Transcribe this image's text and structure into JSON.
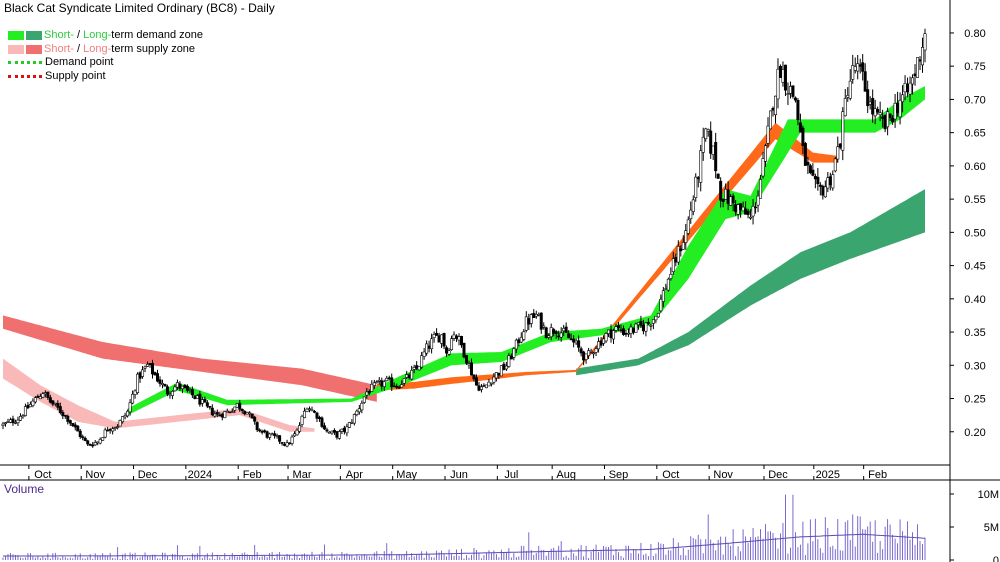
{
  "title": "Black Cat Syndicate Limited Ordinary (BC8) - Daily",
  "legend": {
    "demand_zone": {
      "short": "Short-",
      "sep": " / ",
      "long": "Long-",
      "rest": "term demand zone"
    },
    "supply_zone": {
      "short": "Short-",
      "sep": " / ",
      "long": "Long-",
      "rest": "term supply zone"
    },
    "demand_point": "Demand point",
    "supply_point": "Supply point"
  },
  "colors": {
    "short_demand": "#22ee22",
    "long_demand": "#3aa56f",
    "short_supply": "#f9b9b9",
    "long_supply": "#f07070",
    "short_supply_band": "#ff6a1a",
    "demand_point": "#22cc22",
    "supply_point": "#dd1111",
    "volume_bar": "#6a5acd",
    "volume_avg": "#5a4ab0",
    "volume_title": "#4b2a8a"
  },
  "volume_panel": {
    "title": "Volume"
  },
  "chart_data": {
    "type": "candlestick",
    "title": "Black Cat Syndicate Limited Ordinary (BC8) - Daily",
    "price_axis": {
      "ticks": [
        "0.80",
        "0.75",
        "0.70",
        "0.65",
        "0.60",
        "0.55",
        "0.50",
        "0.45",
        "0.40",
        "0.35",
        "0.30",
        "0.25",
        "0.20"
      ],
      "range": [
        0.15,
        0.83
      ]
    },
    "volume_axis": {
      "ticks": [
        "10M",
        "5M",
        "0"
      ],
      "range": [
        0,
        10000000
      ]
    },
    "x_ticks": [
      "Oct",
      "Nov",
      "Dec",
      "2024",
      "Feb",
      "Mar",
      "Apr",
      "May",
      "Jun",
      "Jul",
      "Aug",
      "Sep",
      "Oct",
      "Nov",
      "Dec",
      "2025",
      "Feb"
    ],
    "close_path": [
      [
        0,
        0.21
      ],
      [
        6,
        0.22
      ],
      [
        12,
        0.245
      ],
      [
        16,
        0.26
      ],
      [
        19,
        0.245
      ],
      [
        22,
        0.235
      ],
      [
        26,
        0.22
      ],
      [
        30,
        0.2
      ],
      [
        34,
        0.18
      ],
      [
        38,
        0.185
      ],
      [
        42,
        0.205
      ],
      [
        46,
        0.21
      ],
      [
        50,
        0.23
      ],
      [
        54,
        0.28
      ],
      [
        58,
        0.3
      ],
      [
        62,
        0.28
      ],
      [
        66,
        0.26
      ],
      [
        70,
        0.27
      ],
      [
        74,
        0.26
      ],
      [
        78,
        0.25
      ],
      [
        82,
        0.235
      ],
      [
        86,
        0.225
      ],
      [
        90,
        0.23
      ],
      [
        94,
        0.24
      ],
      [
        98,
        0.23
      ],
      [
        102,
        0.205
      ],
      [
        106,
        0.195
      ],
      [
        110,
        0.19
      ],
      [
        114,
        0.18
      ],
      [
        118,
        0.2
      ],
      [
        122,
        0.24
      ],
      [
        126,
        0.225
      ],
      [
        130,
        0.2
      ],
      [
        134,
        0.195
      ],
      [
        138,
        0.205
      ],
      [
        142,
        0.23
      ],
      [
        146,
        0.26
      ],
      [
        150,
        0.27
      ],
      [
        154,
        0.275
      ],
      [
        158,
        0.27
      ],
      [
        162,
        0.28
      ],
      [
        166,
        0.295
      ],
      [
        170,
        0.325
      ],
      [
        173,
        0.34
      ],
      [
        176,
        0.345
      ],
      [
        178,
        0.32
      ],
      [
        181,
        0.35
      ],
      [
        184,
        0.33
      ],
      [
        187,
        0.3
      ],
      [
        190,
        0.27
      ],
      [
        193,
        0.265
      ],
      [
        196,
        0.28
      ],
      [
        199,
        0.29
      ],
      [
        202,
        0.3
      ],
      [
        206,
        0.33
      ],
      [
        210,
        0.365
      ],
      [
        214,
        0.375
      ],
      [
        218,
        0.35
      ],
      [
        222,
        0.355
      ],
      [
        226,
        0.345
      ],
      [
        230,
        0.33
      ],
      [
        234,
        0.31
      ],
      [
        238,
        0.33
      ],
      [
        242,
        0.345
      ],
      [
        246,
        0.355
      ],
      [
        250,
        0.35
      ],
      [
        254,
        0.355
      ],
      [
        258,
        0.36
      ],
      [
        262,
        0.375
      ],
      [
        266,
        0.42
      ],
      [
        270,
        0.46
      ],
      [
        274,
        0.5
      ],
      [
        278,
        0.57
      ],
      [
        282,
        0.65
      ],
      [
        285,
        0.62
      ],
      [
        288,
        0.56
      ],
      [
        291,
        0.55
      ],
      [
        294,
        0.54
      ],
      [
        297,
        0.53
      ],
      [
        300,
        0.52
      ],
      [
        303,
        0.56
      ],
      [
        306,
        0.62
      ],
      [
        309,
        0.7
      ],
      [
        312,
        0.75
      ],
      [
        315,
        0.72
      ],
      [
        318,
        0.7
      ],
      [
        321,
        0.62
      ],
      [
        324,
        0.58
      ],
      [
        327,
        0.56
      ],
      [
        330,
        0.57
      ],
      [
        333,
        0.59
      ],
      [
        336,
        0.64
      ],
      [
        339,
        0.72
      ],
      [
        342,
        0.75
      ],
      [
        345,
        0.73
      ],
      [
        348,
        0.69
      ],
      [
        351,
        0.67
      ],
      [
        354,
        0.66
      ],
      [
        357,
        0.68
      ],
      [
        360,
        0.7
      ],
      [
        363,
        0.71
      ],
      [
        366,
        0.74
      ],
      [
        368,
        0.77
      ],
      [
        370,
        0.8
      ]
    ],
    "short_demand_zone_path": [
      [
        50,
        0.225,
        0.235
      ],
      [
        70,
        0.262,
        0.274
      ],
      [
        90,
        0.24,
        0.248
      ],
      [
        140,
        0.245,
        0.25
      ],
      [
        160,
        0.27,
        0.285
      ],
      [
        180,
        0.3,
        0.318
      ],
      [
        200,
        0.305,
        0.32
      ],
      [
        220,
        0.335,
        0.35
      ],
      [
        240,
        0.345,
        0.355
      ],
      [
        260,
        0.36,
        0.375
      ],
      [
        275,
        0.43,
        0.48
      ],
      [
        290,
        0.52,
        0.565
      ],
      [
        300,
        0.53,
        0.555
      ],
      [
        315,
        0.62,
        0.67
      ],
      [
        320,
        0.65,
        0.67
      ],
      [
        350,
        0.65,
        0.67
      ],
      [
        360,
        0.67,
        0.7
      ],
      [
        370,
        0.7,
        0.72
      ]
    ],
    "long_demand_zone_path": [
      [
        230,
        0.285,
        0.295
      ],
      [
        255,
        0.3,
        0.31
      ],
      [
        275,
        0.33,
        0.35
      ],
      [
        300,
        0.39,
        0.42
      ],
      [
        320,
        0.43,
        0.47
      ],
      [
        340,
        0.46,
        0.5
      ],
      [
        370,
        0.5,
        0.565
      ]
    ],
    "long_supply_zone_path": [
      [
        0,
        0.375,
        0.355
      ],
      [
        40,
        0.335,
        0.31
      ],
      [
        80,
        0.31,
        0.29
      ],
      [
        120,
        0.295,
        0.27
      ],
      [
        150,
        0.27,
        0.245
      ]
    ],
    "short_supply_zone_path": [
      [
        0,
        0.31,
        0.28
      ],
      [
        15,
        0.27,
        0.245
      ],
      [
        30,
        0.24,
        0.215
      ],
      [
        45,
        0.215,
        0.205
      ],
      [
        95,
        0.235,
        0.225
      ],
      [
        115,
        0.21,
        0.2
      ],
      [
        125,
        0.205,
        0.2
      ]
    ],
    "short_supply_band_path": [
      [
        150,
        0.272,
        0.262
      ],
      [
        165,
        0.275,
        0.265
      ],
      [
        180,
        0.282,
        0.272
      ],
      [
        195,
        0.286,
        0.278
      ],
      [
        210,
        0.29,
        0.285
      ],
      [
        230,
        0.293,
        0.29
      ],
      [
        310,
        0.665,
        0.64
      ],
      [
        325,
        0.62,
        0.605
      ],
      [
        335,
        0.615,
        0.605
      ]
    ],
    "volume_avg_path": [
      [
        0,
        600000
      ],
      [
        80,
        650000
      ],
      [
        160,
        800000
      ],
      [
        220,
        1300000
      ],
      [
        260,
        1600000
      ],
      [
        290,
        2500000
      ],
      [
        320,
        3500000
      ],
      [
        345,
        3900000
      ],
      [
        370,
        3300000
      ]
    ],
    "n_bars": 371
  }
}
